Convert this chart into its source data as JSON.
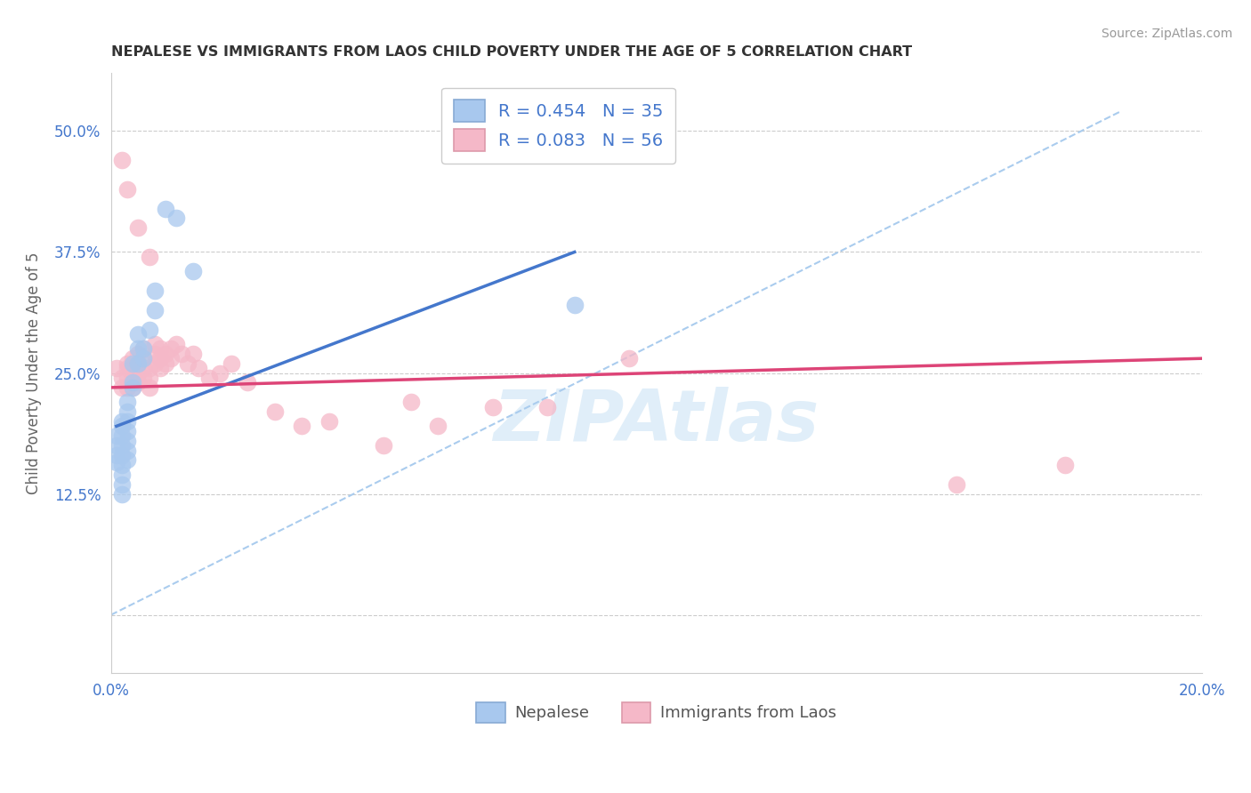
{
  "title": "NEPALESE VS IMMIGRANTS FROM LAOS CHILD POVERTY UNDER THE AGE OF 5 CORRELATION CHART",
  "source": "Source: ZipAtlas.com",
  "ylabel": "Child Poverty Under the Age of 5",
  "background_color": "#ffffff",
  "plot_bg_color": "#ffffff",
  "grid_color": "#cccccc",
  "title_color": "#333333",
  "source_color": "#999999",
  "blue_color": "#a8c8ee",
  "pink_color": "#f5b8c8",
  "blue_line_color": "#4477cc",
  "pink_line_color": "#dd4477",
  "diag_line_color": "#aaccee",
  "tick_color": "#4477cc",
  "R_blue": 0.454,
  "N_blue": 35,
  "R_pink": 0.083,
  "N_pink": 56,
  "xlim": [
    0.0,
    0.2
  ],
  "ylim": [
    -0.06,
    0.56
  ],
  "xticks": [
    0.0,
    0.05,
    0.1,
    0.15,
    0.2
  ],
  "xticklabels": [
    "0.0%",
    "",
    "",
    "",
    "20.0%"
  ],
  "yticks": [
    0.0,
    0.125,
    0.25,
    0.375,
    0.5
  ],
  "yticklabels": [
    "",
    "12.5%",
    "25.0%",
    "37.5%",
    "50.0%"
  ],
  "nepalese_x": [
    0.001,
    0.001,
    0.001,
    0.001,
    0.002,
    0.002,
    0.002,
    0.002,
    0.002,
    0.002,
    0.002,
    0.002,
    0.002,
    0.003,
    0.003,
    0.003,
    0.003,
    0.003,
    0.003,
    0.003,
    0.004,
    0.004,
    0.004,
    0.005,
    0.005,
    0.005,
    0.006,
    0.006,
    0.007,
    0.008,
    0.008,
    0.01,
    0.012,
    0.015,
    0.085
  ],
  "nepalese_y": [
    0.185,
    0.175,
    0.165,
    0.158,
    0.2,
    0.195,
    0.185,
    0.175,
    0.165,
    0.155,
    0.145,
    0.135,
    0.125,
    0.22,
    0.21,
    0.2,
    0.19,
    0.18,
    0.17,
    0.16,
    0.26,
    0.24,
    0.235,
    0.29,
    0.275,
    0.26,
    0.275,
    0.265,
    0.295,
    0.315,
    0.335,
    0.42,
    0.41,
    0.355,
    0.32
  ],
  "laos_x": [
    0.001,
    0.002,
    0.002,
    0.003,
    0.003,
    0.003,
    0.003,
    0.004,
    0.004,
    0.004,
    0.004,
    0.005,
    0.005,
    0.005,
    0.005,
    0.006,
    0.006,
    0.006,
    0.006,
    0.007,
    0.007,
    0.007,
    0.008,
    0.008,
    0.008,
    0.009,
    0.009,
    0.009,
    0.01,
    0.01,
    0.011,
    0.011,
    0.012,
    0.013,
    0.014,
    0.015,
    0.016,
    0.018,
    0.02,
    0.022,
    0.025,
    0.03,
    0.035,
    0.04,
    0.05,
    0.055,
    0.06,
    0.07,
    0.08,
    0.095,
    0.002,
    0.003,
    0.005,
    0.007,
    0.155,
    0.175
  ],
  "laos_y": [
    0.255,
    0.245,
    0.235,
    0.26,
    0.255,
    0.245,
    0.235,
    0.265,
    0.255,
    0.245,
    0.235,
    0.27,
    0.26,
    0.25,
    0.24,
    0.275,
    0.265,
    0.255,
    0.245,
    0.255,
    0.245,
    0.235,
    0.28,
    0.27,
    0.26,
    0.275,
    0.265,
    0.255,
    0.27,
    0.26,
    0.275,
    0.265,
    0.28,
    0.27,
    0.26,
    0.27,
    0.255,
    0.245,
    0.25,
    0.26,
    0.24,
    0.21,
    0.195,
    0.2,
    0.175,
    0.22,
    0.195,
    0.215,
    0.215,
    0.265,
    0.47,
    0.44,
    0.4,
    0.37,
    0.135,
    0.155
  ],
  "blue_line_x": [
    0.001,
    0.085
  ],
  "blue_line_y": [
    0.195,
    0.375
  ],
  "pink_line_x": [
    0.0,
    0.2
  ],
  "pink_line_y": [
    0.235,
    0.265
  ],
  "diag_line_x": [
    0.0,
    0.185
  ],
  "diag_line_y": [
    0.0,
    0.52
  ]
}
